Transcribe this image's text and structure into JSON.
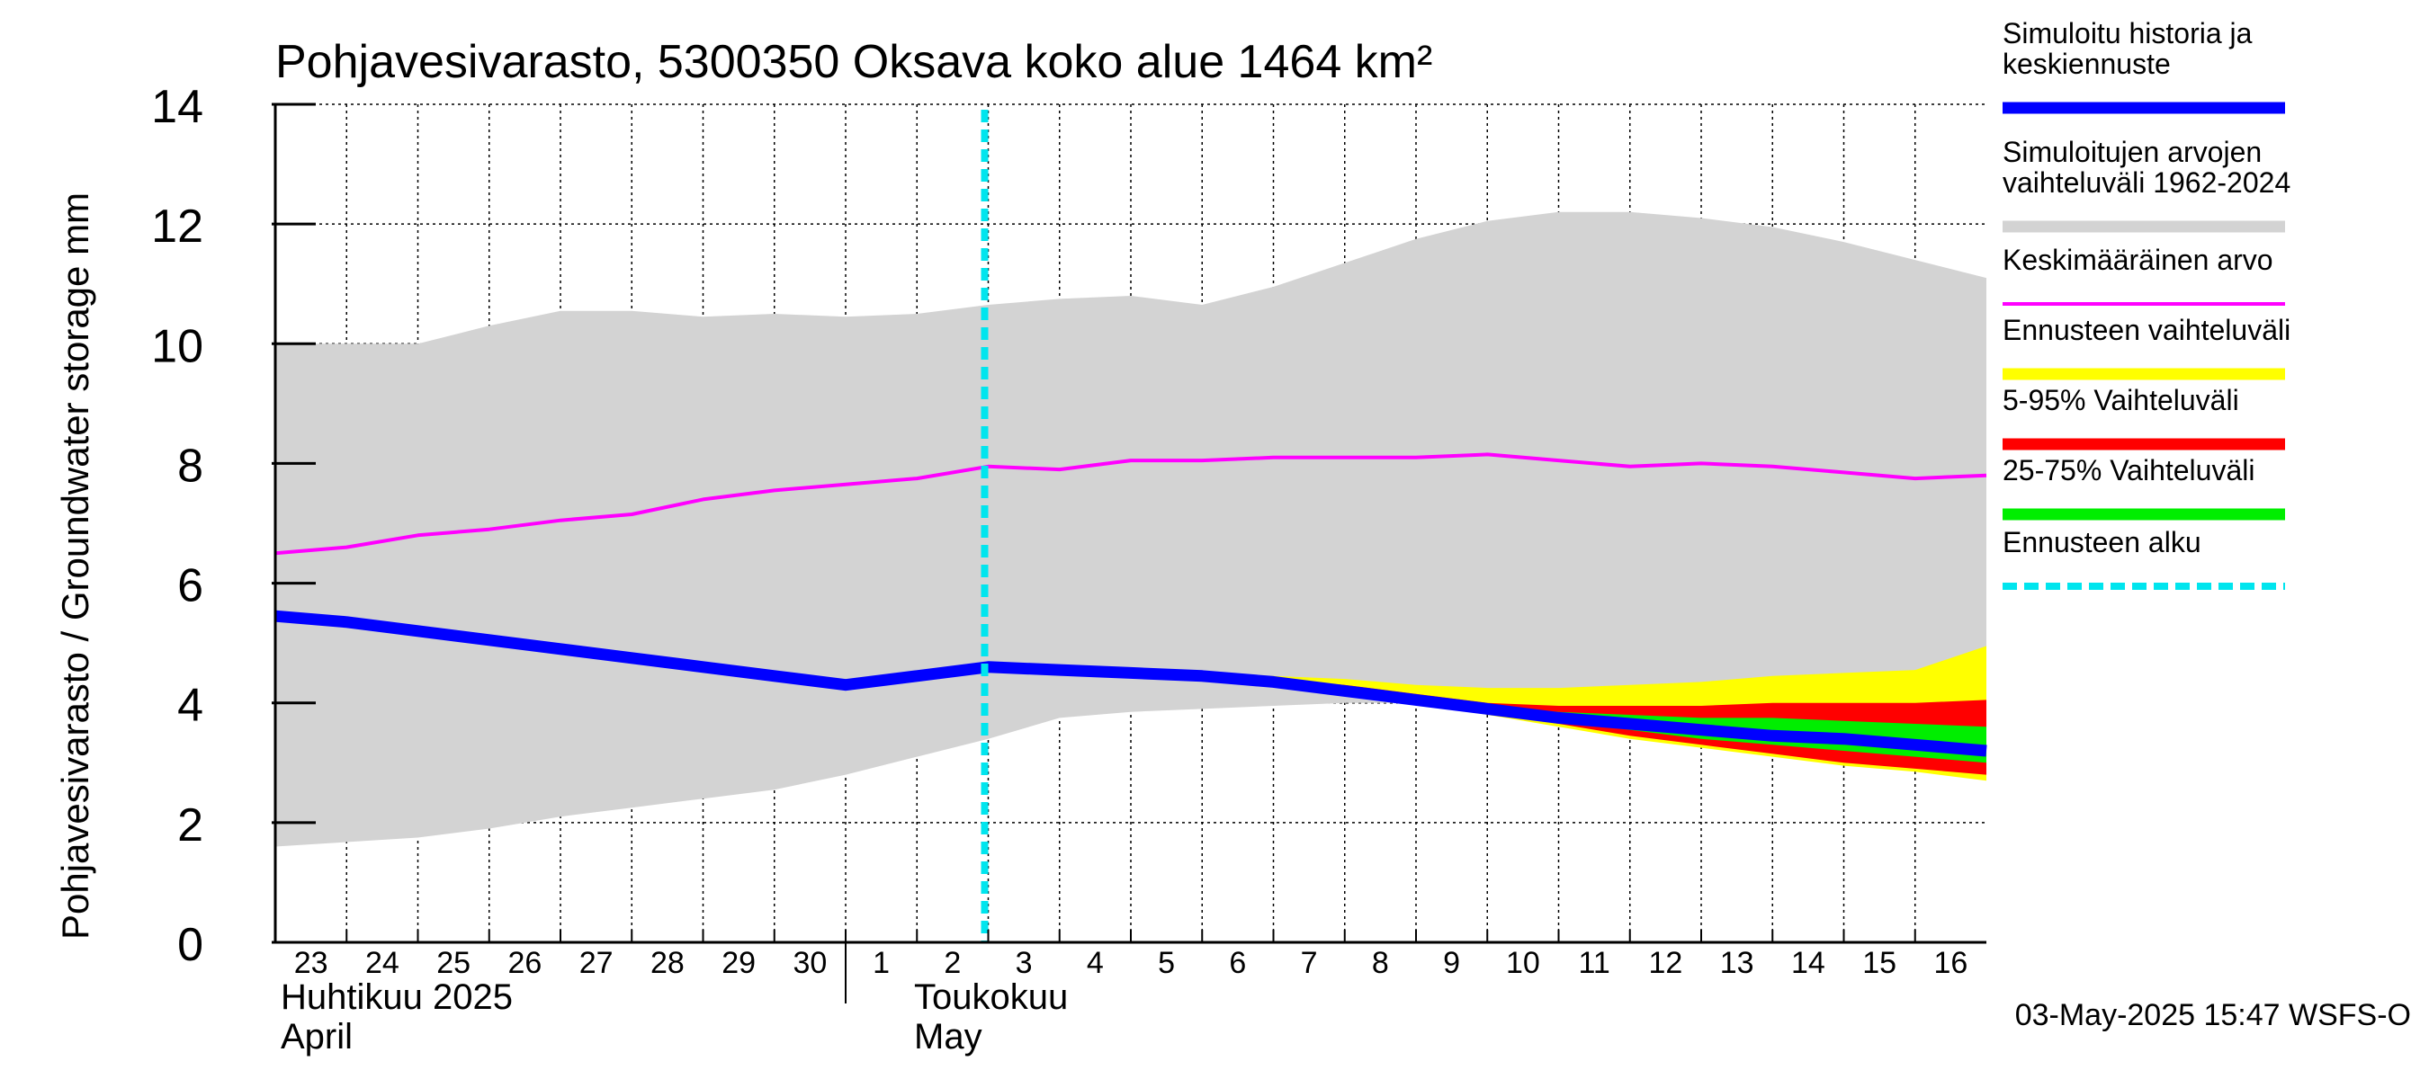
{
  "chart_data": {
    "type": "area",
    "title": "Pohjavesivarasto, 5300350 Oksava koko alue 1464 km²",
    "ylabel": "Pohjavesivarasto / Groundwater storage   mm",
    "ylim": [
      0,
      14
    ],
    "yticks": [
      0,
      2,
      4,
      6,
      8,
      10,
      12,
      14
    ],
    "grid": true,
    "x_start_day": 23,
    "x_end_day": 47,
    "x_tick_labels": [
      "23",
      "24",
      "25",
      "26",
      "27",
      "28",
      "29",
      "30",
      "1",
      "2",
      "3",
      "4",
      "5",
      "6",
      "7",
      "8",
      "9",
      "10",
      "11",
      "12",
      "13",
      "14",
      "15",
      "16"
    ],
    "month_labels": [
      {
        "fi": "Huhtikuu  2025",
        "en": "April"
      },
      {
        "fi": "Toukokuu",
        "en": "May"
      }
    ],
    "forecast_start_day": 33,
    "series": [
      {
        "name": "Simuloitujen arvojen vaihteluväli 1962-2024",
        "x": [
          23,
          25,
          26,
          27,
          28,
          29,
          30,
          31,
          32,
          33,
          34,
          35,
          36,
          37,
          38,
          39,
          40,
          41,
          42,
          43,
          44,
          45,
          46,
          47
        ],
        "upper": [
          10.0,
          10.0,
          10.3,
          10.55,
          10.55,
          10.45,
          10.5,
          10.45,
          10.5,
          10.65,
          10.75,
          10.8,
          10.65,
          10.95,
          11.35,
          11.75,
          12.05,
          12.2,
          12.2,
          12.1,
          11.95,
          11.7,
          11.4,
          11.1
        ],
        "lower": [
          1.6,
          1.75,
          1.9,
          2.1,
          2.25,
          2.4,
          2.55,
          2.8,
          3.1,
          3.4,
          3.75,
          3.85,
          3.9,
          3.95,
          4.0,
          4.0,
          4.0,
          3.95,
          3.95,
          3.95,
          3.95,
          3.95,
          4.0,
          4.05
        ]
      },
      {
        "name": "Keskimääräinen arvo",
        "x": [
          23,
          24,
          25,
          26,
          27,
          28,
          29,
          30,
          31,
          32,
          33,
          34,
          35,
          36,
          37,
          38,
          39,
          40,
          41,
          42,
          43,
          44,
          45,
          46,
          47
        ],
        "values": [
          6.5,
          6.6,
          6.8,
          6.9,
          7.05,
          7.15,
          7.4,
          7.55,
          7.65,
          7.75,
          7.95,
          7.9,
          8.05,
          8.05,
          8.1,
          8.1,
          8.1,
          8.15,
          8.05,
          7.95,
          8.0,
          7.95,
          7.85,
          7.75,
          7.8
        ]
      },
      {
        "name": "Simuloitu historia ja keskiennuste",
        "x": [
          23,
          24,
          25,
          26,
          27,
          28,
          29,
          30,
          31,
          32,
          33,
          34,
          35,
          36,
          37,
          38,
          39,
          40,
          41,
          42,
          43,
          44,
          45,
          46,
          47
        ],
        "values": [
          5.45,
          5.35,
          5.2,
          5.05,
          4.9,
          4.75,
          4.6,
          4.45,
          4.3,
          4.45,
          4.6,
          4.55,
          4.5,
          4.45,
          4.35,
          4.2,
          4.05,
          3.9,
          3.75,
          3.65,
          3.55,
          3.45,
          3.4,
          3.3,
          3.2
        ]
      },
      {
        "name": "Ennusteen vaihteluväli",
        "x": [
          33,
          34,
          35,
          36,
          37,
          38,
          39,
          40,
          41,
          42,
          43,
          44,
          45,
          46,
          47
        ],
        "upper": [
          4.6,
          4.6,
          4.55,
          4.5,
          4.45,
          4.4,
          4.3,
          4.25,
          4.25,
          4.3,
          4.35,
          4.45,
          4.5,
          4.55,
          4.95
        ],
        "lower": [
          4.6,
          4.55,
          4.5,
          4.4,
          4.3,
          4.15,
          4.0,
          3.8,
          3.6,
          3.4,
          3.25,
          3.1,
          2.95,
          2.85,
          2.7
        ]
      },
      {
        "name": "5-95% Vaihteluväli",
        "x": [
          33,
          34,
          35,
          36,
          37,
          38,
          39,
          40,
          41,
          42,
          43,
          44,
          45,
          46,
          47
        ],
        "upper": [
          4.6,
          4.55,
          4.5,
          4.45,
          4.4,
          4.3,
          4.15,
          4.0,
          3.95,
          3.95,
          3.95,
          4.0,
          4.0,
          4.0,
          4.05
        ],
        "lower": [
          4.6,
          4.55,
          4.5,
          4.4,
          4.3,
          4.15,
          4.0,
          3.85,
          3.65,
          3.45,
          3.3,
          3.15,
          3.0,
          2.9,
          2.8
        ]
      },
      {
        "name": "25-75% Vaihteluväli",
        "x": [
          33,
          34,
          35,
          36,
          37,
          38,
          39,
          40,
          41,
          42,
          43,
          44,
          45,
          46,
          47
        ],
        "upper": [
          4.6,
          4.55,
          4.5,
          4.45,
          4.35,
          4.25,
          4.1,
          3.95,
          3.85,
          3.8,
          3.75,
          3.75,
          3.7,
          3.65,
          3.6
        ],
        "lower": [
          4.6,
          4.55,
          4.5,
          4.4,
          4.3,
          4.2,
          4.05,
          3.9,
          3.7,
          3.55,
          3.4,
          3.3,
          3.2,
          3.1,
          3.0
        ]
      }
    ],
    "legend": [
      {
        "label": "Simuloitu historia ja keskiennuste",
        "color": "#0000ff",
        "style": "solid"
      },
      {
        "label": "Simuloitujen arvojen vaihteluväli 1962-2024",
        "color": "#d3d3d3",
        "style": "solid"
      },
      {
        "label": "Keskimääräinen arvo",
        "color": "#ff00ff",
        "style": "solid"
      },
      {
        "label": "Ennusteen vaihteluväli",
        "color": "#ffff00",
        "style": "solid"
      },
      {
        "label": "5-95% Vaihteluväli",
        "color": "#ff0000",
        "style": "solid"
      },
      {
        "label": "25-75% Vaihteluväli",
        "color": "#00ee00",
        "style": "solid"
      },
      {
        "label": "Ennusteen alku",
        "color": "#00e5ee",
        "style": "dashed"
      }
    ],
    "timestamp": "03-May-2025 15:47 WSFS-O"
  }
}
